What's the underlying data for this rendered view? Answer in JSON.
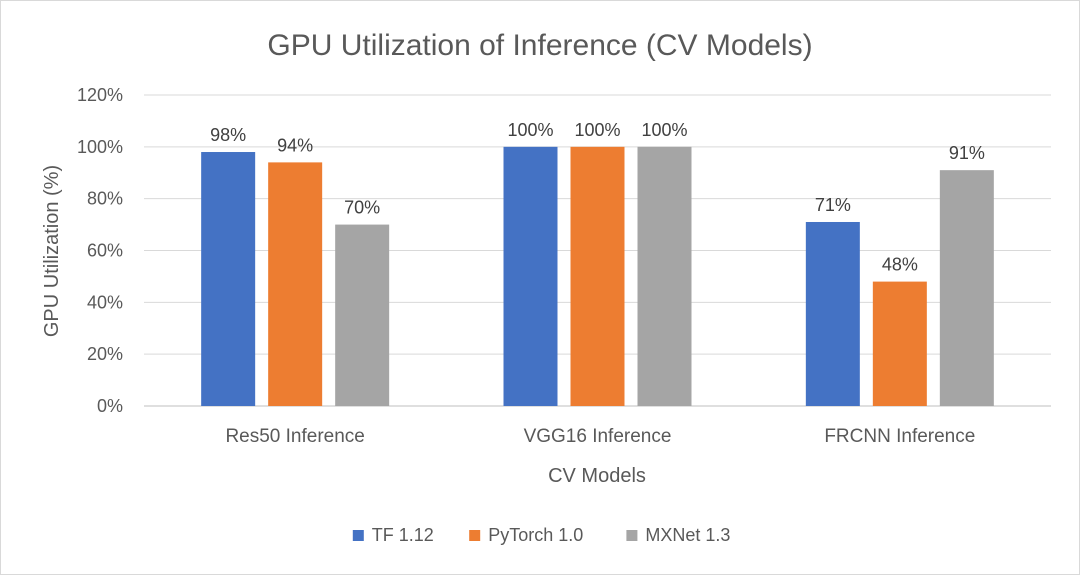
{
  "chart_data": {
    "type": "bar",
    "title": "GPU Utilization of Inference (CV Models)",
    "xlabel": "CV Models",
    "ylabel": "GPU Utilization (%)",
    "categories": [
      "Res50 Inference",
      "VGG16 Inference",
      "FRCNN Inference"
    ],
    "series": [
      {
        "name": "TF 1.12",
        "color": "#4472C4",
        "values": [
          98,
          100,
          71
        ],
        "labels": [
          "98%",
          "100%",
          "71%"
        ]
      },
      {
        "name": "PyTorch 1.0",
        "color": "#ED7D31",
        "values": [
          94,
          100,
          48
        ],
        "labels": [
          "94%",
          "100%",
          "48%"
        ]
      },
      {
        "name": "MXNet 1.3",
        "color": "#A5A5A5",
        "values": [
          70,
          100,
          91
        ],
        "labels": [
          "70%",
          "100%",
          "91%"
        ]
      }
    ],
    "yticks": [
      0,
      20,
      40,
      60,
      80,
      100,
      120
    ],
    "ytick_labels": [
      "0%",
      "20%",
      "40%",
      "60%",
      "80%",
      "100%",
      "120%"
    ],
    "ylim": [
      0,
      120
    ],
    "grid": true,
    "legend_position": "bottom"
  }
}
